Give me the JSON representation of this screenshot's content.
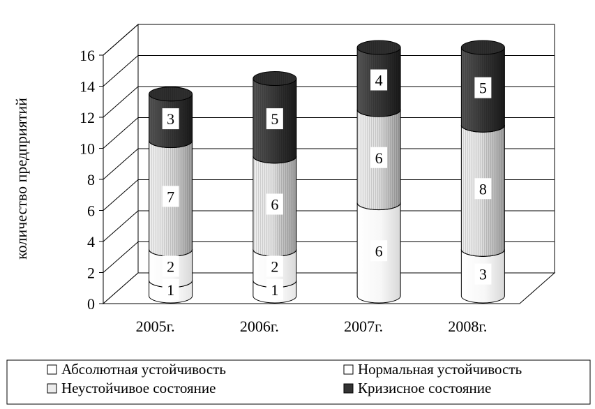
{
  "chart_data": {
    "type": "bar",
    "stacked": true,
    "style": "3d-cylinder",
    "categories": [
      "2005г.",
      "2006г.",
      "2007г.",
      "2008г."
    ],
    "ylabel": "количество предприятий",
    "ylim": [
      0,
      16
    ],
    "yticks": [
      0,
      2,
      4,
      6,
      8,
      10,
      12,
      14,
      16
    ],
    "grid": true,
    "legend_position": "bottom",
    "series": [
      {
        "name": "Абсолютная устойчивость",
        "values": [
          1,
          1,
          0,
          0
        ],
        "color": "#ffffff"
      },
      {
        "name": "Нормальная устойчивость",
        "values": [
          2,
          2,
          6,
          3
        ],
        "color": "#f4f4f4"
      },
      {
        "name": "Неустойчивое состояние",
        "values": [
          7,
          6,
          6,
          8
        ],
        "color": "#d6d6d6"
      },
      {
        "name": "Кризисное состояние",
        "values": [
          3,
          5,
          4,
          5
        ],
        "color": "#3a3a3a"
      }
    ]
  }
}
